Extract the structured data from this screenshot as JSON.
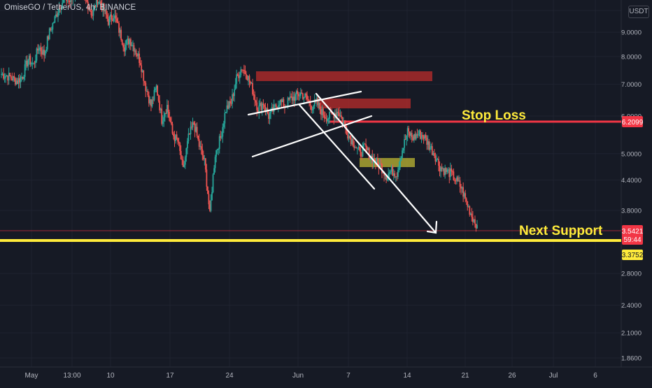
{
  "header": {
    "title": "OmiseGO / TetherUS, 4h, BINANCE",
    "currency": "USDT"
  },
  "chart_data": {
    "type": "candlestick",
    "symbol": "OmiseGO / TetherUS",
    "timeframe": "4h",
    "exchange": "BINANCE",
    "currency": "USDT",
    "scale": "log",
    "grid": true,
    "y_ticks": [
      "10",
      "9.0000",
      "8.0000",
      "7.0000",
      "6.0000",
      "5.0000",
      "4.4000",
      "3.8000",
      "2.8000",
      "2.4000",
      "2.1000",
      "1.8600"
    ],
    "x_ticks": [
      "May",
      "13:00",
      "10",
      "17",
      "24",
      "Jun",
      "7",
      "14",
      "21",
      "26",
      "Jul",
      "6"
    ],
    "price_labels": {
      "stop": "6.2099",
      "current": "3.5421",
      "countdown": "59:44",
      "support": "3.3752"
    },
    "annotations": {
      "stop_loss": "Stop Loss",
      "next_support": "Next Support"
    },
    "levels": {
      "stop": 6.2099,
      "current": 3.5421,
      "support": 3.3752
    },
    "closes": [
      7.35,
      7.3,
      7.2,
      7.1,
      7.3,
      7.9,
      7.7,
      8.4,
      8.1,
      9.0,
      9.6,
      10.3,
      10.6,
      10.4,
      11.2,
      10.8,
      10.4,
      9.8,
      10.6,
      10.1,
      9.5,
      9.8,
      9.1,
      8.4,
      8.7,
      8.3,
      7.8,
      6.9,
      6.3,
      6.9,
      5.9,
      6.3,
      5.5,
      5.3,
      4.6,
      5.4,
      5.8,
      5.2,
      4.8,
      3.7,
      5.0,
      5.4,
      6.2,
      6.4,
      7.2,
      7.6,
      7.3,
      6.8,
      6.2,
      6.4,
      6.0,
      6.2,
      6.45,
      6.3,
      6.5,
      6.6,
      6.7,
      6.55,
      6.3,
      6.4,
      6.1,
      5.95,
      6.05,
      6.15,
      5.8,
      5.45,
      5.25,
      5.0,
      5.15,
      4.95,
      4.8,
      4.7,
      4.5,
      4.6,
      4.55,
      5.1,
      5.55,
      5.4,
      5.5,
      5.45,
      5.2,
      5.0,
      4.7,
      4.6,
      4.55,
      4.4,
      4.25,
      3.95,
      3.7,
      3.54
    ]
  }
}
